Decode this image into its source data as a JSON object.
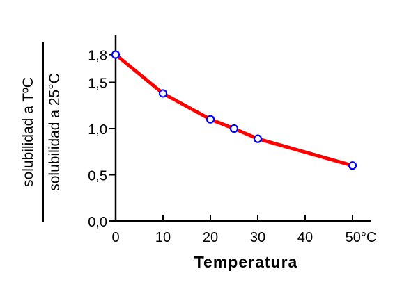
{
  "chart_data": {
    "type": "line",
    "title": "",
    "xlabel": "Temperatura",
    "ylabel_numerator": "solubilidad a TºC",
    "ylabel_denominator": "solubilidad a 25°C",
    "x_tick_labels": [
      "0",
      "10",
      "20",
      "30",
      "40",
      "50°C"
    ],
    "y_tick_labels": [
      "0,0",
      "0,5",
      "1,0",
      "1,5",
      "1,8"
    ],
    "x_ticks": [
      0,
      10,
      20,
      30,
      40,
      50
    ],
    "y_ticks": [
      0.0,
      0.5,
      1.0,
      1.5,
      1.8
    ],
    "xlim": [
      0,
      55
    ],
    "ylim": [
      0,
      2.0
    ],
    "grid": false,
    "series": [
      {
        "x": [
          0,
          10,
          20,
          25,
          30,
          50
        ],
        "y": [
          1.8,
          1.38,
          1.1,
          1.0,
          0.89,
          0.6
        ]
      }
    ],
    "colors": {
      "line": "#ff0000",
      "marker_stroke": "#0000ff",
      "marker_fill": "#ffffff",
      "axis": "#000000"
    }
  }
}
